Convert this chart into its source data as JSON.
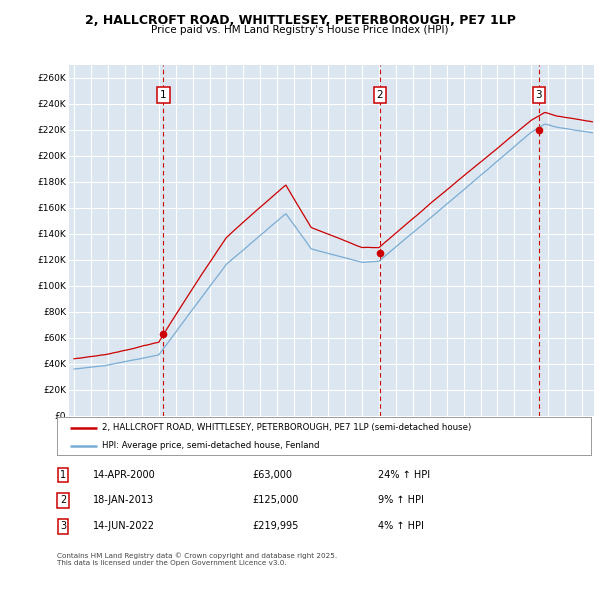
{
  "title_line1": "2, HALLCROFT ROAD, WHITTLESEY, PETERBOROUGH, PE7 1LP",
  "title_line2": "Price paid vs. HM Land Registry's House Price Index (HPI)",
  "background_color": "#dce6f1",
  "grid_color": "#ffffff",
  "ylim": [
    0,
    270000
  ],
  "yticks": [
    0,
    20000,
    40000,
    60000,
    80000,
    100000,
    120000,
    140000,
    160000,
    180000,
    200000,
    220000,
    240000,
    260000
  ],
  "sale_points": [
    {
      "year": 2000.28,
      "price": 63000,
      "label": "1"
    },
    {
      "year": 2013.05,
      "price": 125000,
      "label": "2"
    },
    {
      "year": 2022.45,
      "price": 219995,
      "label": "3"
    }
  ],
  "vline_color": "#cc0000",
  "sale_color": "#cc0000",
  "hpi_color": "#7aadd4",
  "legend_sale_label": "2, HALLCROFT ROAD, WHITTLESEY, PETERBOROUGH, PE7 1LP (semi-detached house)",
  "legend_hpi_label": "HPI: Average price, semi-detached house, Fenland",
  "table_rows": [
    {
      "num": "1",
      "date": "14-APR-2000",
      "price": "£63,000",
      "pct": "24% ↑ HPI"
    },
    {
      "num": "2",
      "date": "18-JAN-2013",
      "price": "£125,000",
      "pct": "9% ↑ HPI"
    },
    {
      "num": "3",
      "date": "14-JUN-2022",
      "price": "£219,995",
      "pct": "4% ↑ HPI"
    }
  ],
  "footnote": "Contains HM Land Registry data © Crown copyright and database right 2025.\nThis data is licensed under the Open Government Licence v3.0."
}
